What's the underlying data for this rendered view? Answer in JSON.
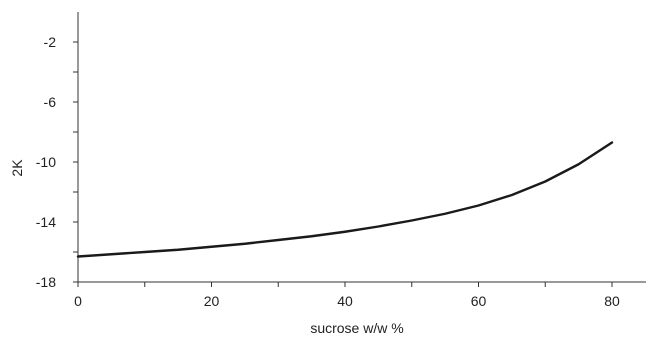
{
  "chart_data": {
    "type": "line",
    "title": "",
    "xlabel": "sucrose w/w %",
    "ylabel": "2K",
    "xlim": [
      0,
      85
    ],
    "ylim": [
      -18,
      0
    ],
    "x_ticks_labeled": [
      0,
      20,
      40,
      60,
      80
    ],
    "x_ticks_minor": [
      10,
      30,
      50,
      70
    ],
    "y_ticks_labeled": [
      -18,
      -14,
      -10,
      -6,
      -2
    ],
    "y_ticks_minor": [
      -16,
      -12,
      -8,
      -4
    ],
    "x_tick_labels": [
      "0",
      "20",
      "40",
      "60",
      "80"
    ],
    "y_tick_labels": [
      "-18",
      "-14",
      "-10",
      "-6",
      "-2"
    ],
    "grid": false,
    "legend": "none",
    "series": [
      {
        "color": "#1a1a1a",
        "x": [
          0,
          5,
          10,
          15,
          20,
          25,
          30,
          35,
          40,
          45,
          50,
          55,
          60,
          65,
          70,
          75,
          80
        ],
        "y": [
          -16.3,
          -16.15,
          -16.0,
          -15.85,
          -15.65,
          -15.45,
          -15.2,
          -14.95,
          -14.65,
          -14.3,
          -13.9,
          -13.45,
          -12.9,
          -12.2,
          -11.3,
          -10.15,
          -8.7
        ]
      }
    ]
  }
}
